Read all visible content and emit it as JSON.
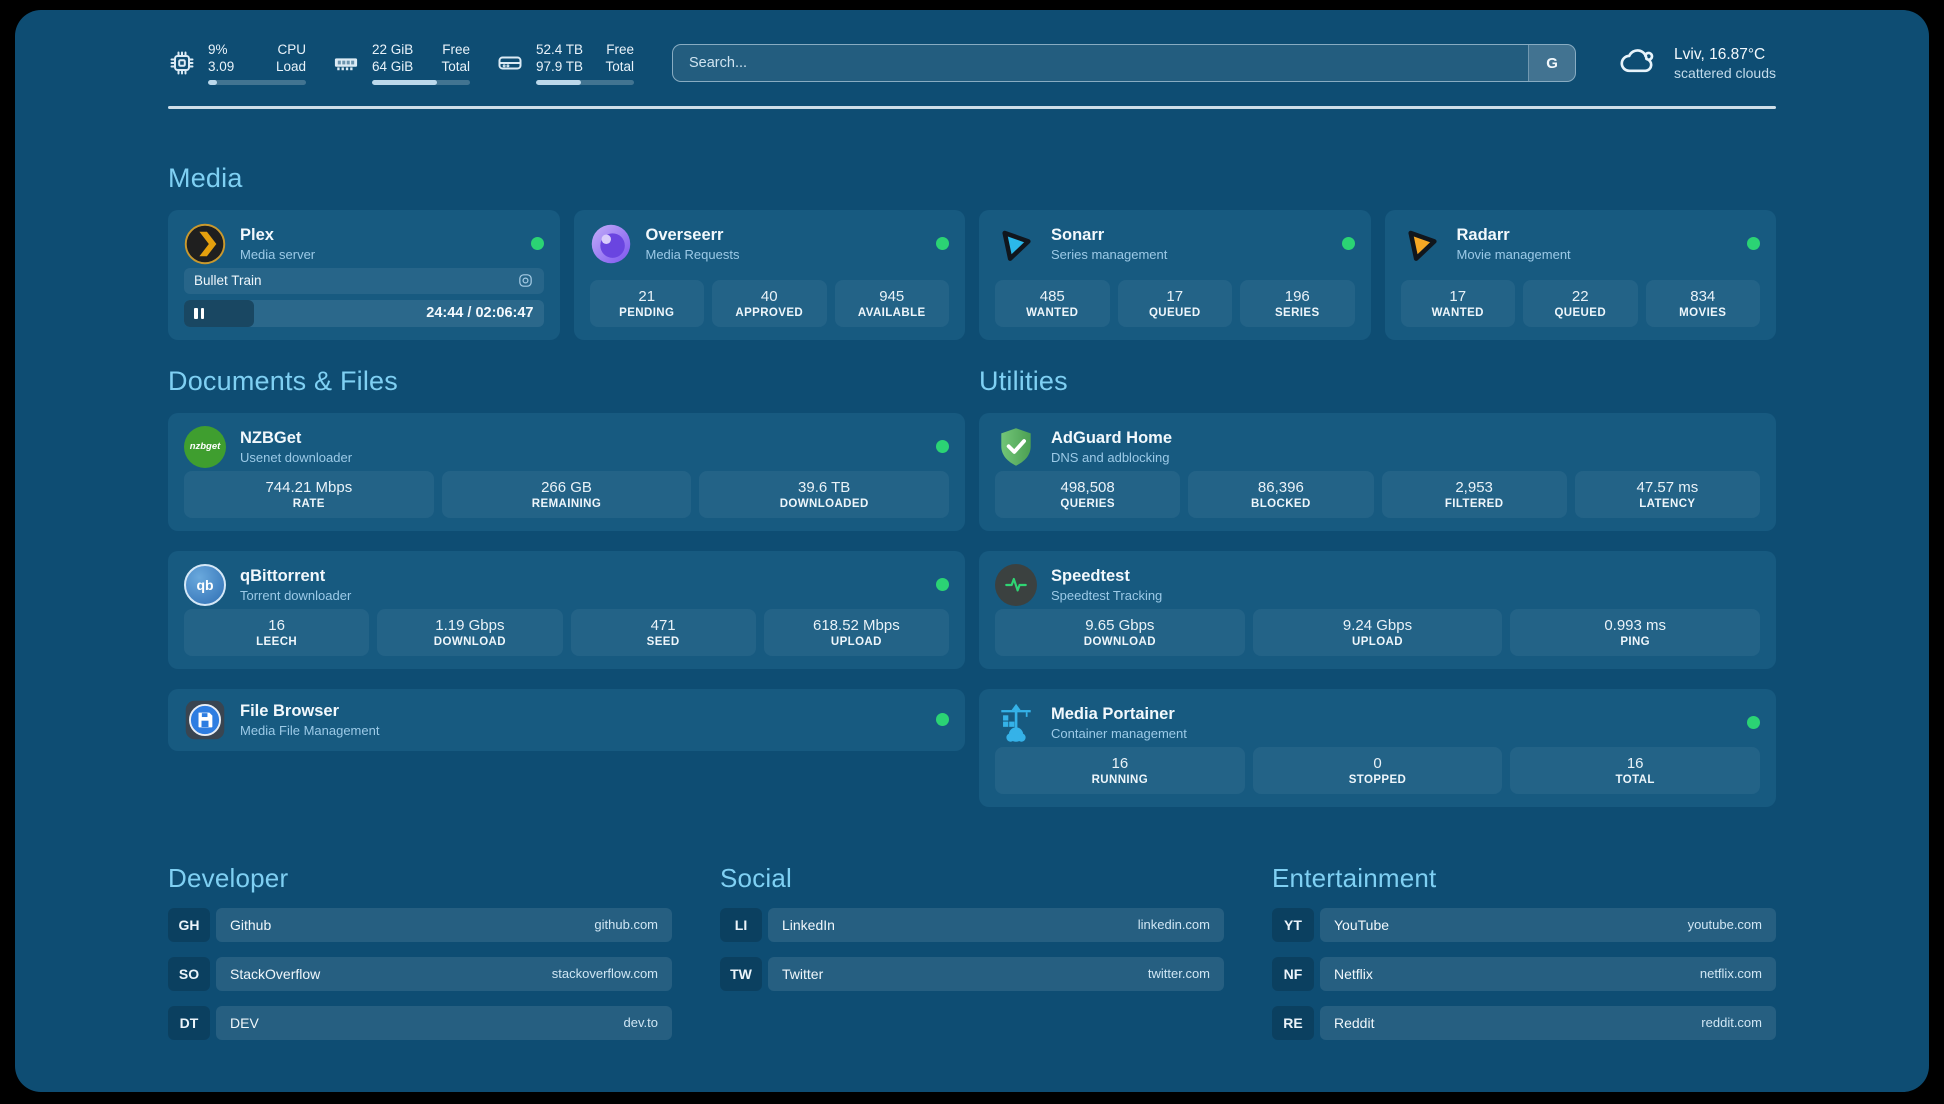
{
  "system_monitor": {
    "cpu": {
      "value_top": "9%",
      "value_bottom": "3.09",
      "label_top": "CPU",
      "label_bottom": "Load",
      "progress": 9
    },
    "memory": {
      "value_top": "22 GiB",
      "value_bottom": "64 GiB",
      "label_top": "Free",
      "label_bottom": "Total",
      "progress": 66
    },
    "disk": {
      "value_top": "52.4 TB",
      "value_bottom": "97.9 TB",
      "label_top": "Free",
      "label_bottom": "Total",
      "progress": 46
    }
  },
  "search": {
    "placeholder": "Search...",
    "button_label": "G"
  },
  "weather": {
    "location_temp": "Lviv, 16.87°C",
    "condition": "scattered clouds"
  },
  "sections": {
    "media": "Media",
    "documents": "Documents & Files",
    "utilities": "Utilities",
    "developer": "Developer",
    "social": "Social",
    "entertainment": "Entertainment"
  },
  "apps": {
    "plex": {
      "name": "Plex",
      "subtitle": "Media server",
      "online": true,
      "player": {
        "title": "Bullet Train",
        "time": "24:44 / 02:06:47",
        "progress_pct": 19.6
      }
    },
    "overseerr": {
      "name": "Overseerr",
      "subtitle": "Media Requests",
      "online": true,
      "stats": [
        {
          "value": "21",
          "label": "PENDING"
        },
        {
          "value": "40",
          "label": "APPROVED"
        },
        {
          "value": "945",
          "label": "AVAILABLE"
        }
      ]
    },
    "sonarr": {
      "name": "Sonarr",
      "subtitle": "Series management",
      "online": true,
      "stats": [
        {
          "value": "485",
          "label": "WANTED"
        },
        {
          "value": "17",
          "label": "QUEUED"
        },
        {
          "value": "196",
          "label": "SERIES"
        }
      ]
    },
    "radarr": {
      "name": "Radarr",
      "subtitle": "Movie management",
      "online": true,
      "stats": [
        {
          "value": "17",
          "label": "WANTED"
        },
        {
          "value": "22",
          "label": "QUEUED"
        },
        {
          "value": "834",
          "label": "MOVIES"
        }
      ]
    },
    "nzbget": {
      "name": "NZBGet",
      "subtitle": "Usenet downloader",
      "icon_text": "nzbget",
      "online": true,
      "stats": [
        {
          "value": "744.21 Mbps",
          "label": "RATE"
        },
        {
          "value": "266 GB",
          "label": "REMAINING"
        },
        {
          "value": "39.6 TB",
          "label": "DOWNLOADED"
        }
      ]
    },
    "qbittorrent": {
      "name": "qBittorrent",
      "subtitle": "Torrent downloader",
      "icon_text": "qb",
      "online": true,
      "stats": [
        {
          "value": "16",
          "label": "LEECH"
        },
        {
          "value": "1.19 Gbps",
          "label": "DOWNLOAD"
        },
        {
          "value": "471",
          "label": "SEED"
        },
        {
          "value": "618.52 Mbps",
          "label": "UPLOAD"
        }
      ]
    },
    "filebrowser": {
      "name": "File Browser",
      "subtitle": "Media File Management",
      "online": true
    },
    "adguard": {
      "name": "AdGuard Home",
      "subtitle": "DNS and adblocking",
      "online": false,
      "stats": [
        {
          "value": "498,508",
          "label": "QUERIES"
        },
        {
          "value": "86,396",
          "label": "BLOCKED"
        },
        {
          "value": "2,953",
          "label": "FILTERED"
        },
        {
          "value": "47.57 ms",
          "label": "LATENCY"
        }
      ]
    },
    "speedtest": {
      "name": "Speedtest",
      "subtitle": "Speedtest Tracking",
      "online": false,
      "stats": [
        {
          "value": "9.65 Gbps",
          "label": "DOWNLOAD"
        },
        {
          "value": "9.24 Gbps",
          "label": "UPLOAD"
        },
        {
          "value": "0.993 ms",
          "label": "PING"
        }
      ]
    },
    "portainer": {
      "name": "Media Portainer",
      "subtitle": "Container management",
      "online": true,
      "stats": [
        {
          "value": "16",
          "label": "RUNNING"
        },
        {
          "value": "0",
          "label": "STOPPED"
        },
        {
          "value": "16",
          "label": "TOTAL"
        }
      ]
    }
  },
  "links": {
    "developer": {
      "items": [
        {
          "abbr": "GH",
          "name": "Github",
          "url": "github.com"
        },
        {
          "abbr": "SO",
          "name": "StackOverflow",
          "url": "stackoverflow.com"
        },
        {
          "abbr": "DT",
          "name": "DEV",
          "url": "dev.to"
        }
      ]
    },
    "social": {
      "items": [
        {
          "abbr": "LI",
          "name": "LinkedIn",
          "url": "linkedin.com"
        },
        {
          "abbr": "TW",
          "name": "Twitter",
          "url": "twitter.com"
        }
      ]
    },
    "entertainment": {
      "items": [
        {
          "abbr": "YT",
          "name": "YouTube",
          "url": "youtube.com"
        },
        {
          "abbr": "NF",
          "name": "Netflix",
          "url": "netflix.com"
        },
        {
          "abbr": "RE",
          "name": "Reddit",
          "url": "reddit.com"
        }
      ]
    }
  },
  "colors": {
    "status_online": "#2bd374",
    "heading": "#7fd0f3",
    "app_bg": "#0e4d73",
    "card_bg": "#175a80"
  }
}
